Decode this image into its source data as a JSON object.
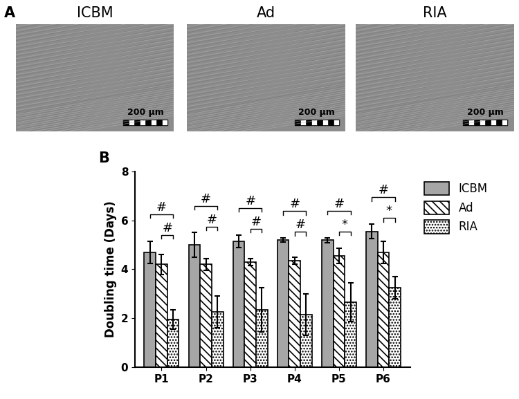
{
  "panel_labels": [
    "A",
    "B"
  ],
  "images": {
    "titles": [
      "ICBM",
      "Ad",
      "RIA"
    ],
    "scale_bars": [
      "200 μm",
      "200 μm",
      "200 μm"
    ]
  },
  "chart_data": {
    "type": "bar",
    "categories": [
      "P1",
      "P2",
      "P3",
      "P4",
      "P5",
      "P6"
    ],
    "y_label": "Doubling time (Days)",
    "ylim": [
      0,
      8
    ],
    "yticks": [
      0,
      2,
      4,
      6,
      8
    ],
    "legend": "upper right",
    "series": [
      {
        "name": "ICBM",
        "color": "#a6a6a6",
        "values": [
          4.7,
          5.0,
          5.15,
          5.2,
          5.2,
          5.55
        ],
        "errors": [
          0.45,
          0.5,
          0.25,
          0.08,
          0.1,
          0.3
        ]
      },
      {
        "name": "Ad",
        "color": "#ffffff",
        "values": [
          4.2,
          4.2,
          4.3,
          4.35,
          4.55,
          4.7
        ],
        "errors": [
          0.4,
          0.25,
          0.15,
          0.15,
          0.3,
          0.45
        ]
      },
      {
        "name": "RIA",
        "color": "#ffffff",
        "values": [
          1.95,
          2.25,
          2.35,
          2.15,
          2.65,
          3.25
        ],
        "errors": [
          0.4,
          0.65,
          0.9,
          0.85,
          0.8,
          0.45
        ]
      }
    ],
    "annotations": [
      {
        "category": "P1",
        "from": "ICBM",
        "to": "RIA",
        "label": "#"
      },
      {
        "category": "P1",
        "from": "Ad",
        "to": "RIA",
        "label": "#"
      },
      {
        "category": "P2",
        "from": "ICBM",
        "to": "RIA",
        "label": "#"
      },
      {
        "category": "P2",
        "from": "Ad",
        "to": "RIA",
        "label": "#"
      },
      {
        "category": "P3",
        "from": "ICBM",
        "to": "RIA",
        "label": "#"
      },
      {
        "category": "P3",
        "from": "Ad",
        "to": "RIA",
        "label": "#"
      },
      {
        "category": "P4",
        "from": "ICBM",
        "to": "RIA",
        "label": "#"
      },
      {
        "category": "P4",
        "from": "Ad",
        "to": "RIA",
        "label": "#"
      },
      {
        "category": "P5",
        "from": "ICBM",
        "to": "RIA",
        "label": "#"
      },
      {
        "category": "P5",
        "from": "Ad",
        "to": "RIA",
        "label": "*"
      },
      {
        "category": "P6",
        "from": "ICBM",
        "to": "RIA",
        "label": "#"
      },
      {
        "category": "P6",
        "from": "Ad",
        "to": "RIA",
        "label": "*"
      }
    ]
  }
}
